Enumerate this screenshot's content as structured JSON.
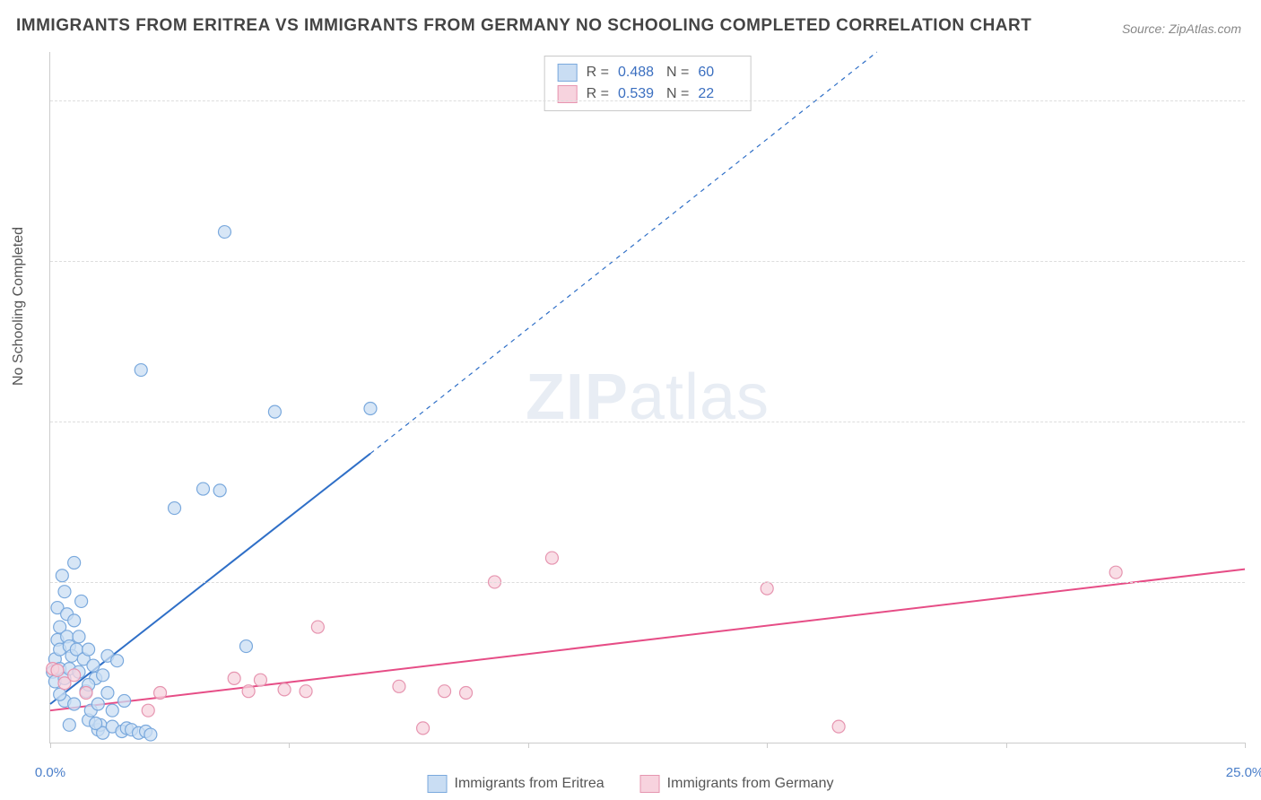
{
  "title": "IMMIGRANTS FROM ERITREA VS IMMIGRANTS FROM GERMANY NO SCHOOLING COMPLETED CORRELATION CHART",
  "source": "Source: ZipAtlas.com",
  "ylabel": "No Schooling Completed",
  "watermark": {
    "bold": "ZIP",
    "light": "atlas"
  },
  "chart": {
    "type": "scatter-correlation",
    "background_color": "#ffffff",
    "grid_color": "#dddddd",
    "axis_color": "#cccccc",
    "tick_label_color": "#4a7ec9",
    "label_fontsize": 16,
    "tick_fontsize": 15,
    "title_fontsize": 19,
    "xlim": [
      0,
      25
    ],
    "ylim": [
      0,
      21.5
    ],
    "yticks": [
      5,
      10,
      15,
      20
    ],
    "ytick_labels": [
      "5.0%",
      "10.0%",
      "15.0%",
      "20.0%"
    ],
    "xticks": [
      0,
      5,
      10,
      15,
      20,
      25
    ],
    "xtick_labels": [
      "0.0%",
      "",
      "",
      "",
      "",
      "25.0%"
    ],
    "marker_radius": 7,
    "marker_stroke_width": 1.2,
    "line_width": 2,
    "dash_pattern": "5,5"
  },
  "series": [
    {
      "name": "Immigrants from Eritrea",
      "legend_label": "Immigrants from Eritrea",
      "fill": "#c9ddf3",
      "stroke": "#7aa9dd",
      "line_color": "#2f6fc7",
      "R": "0.488",
      "N": "60",
      "trend_solid": {
        "x1": 0,
        "y1": 1.2,
        "x2": 6.7,
        "y2": 9.0
      },
      "trend_dash": {
        "x1": 6.7,
        "y1": 9.0,
        "x2": 17.3,
        "y2": 21.5
      },
      "points": [
        [
          0.05,
          2.2
        ],
        [
          0.1,
          2.6
        ],
        [
          0.1,
          1.9
        ],
        [
          0.15,
          3.2
        ],
        [
          0.15,
          4.2
        ],
        [
          0.2,
          3.6
        ],
        [
          0.2,
          2.9
        ],
        [
          0.2,
          2.3
        ],
        [
          0.25,
          5.2
        ],
        [
          0.3,
          4.7
        ],
        [
          0.3,
          2.0
        ],
        [
          0.3,
          1.3
        ],
        [
          0.35,
          3.3
        ],
        [
          0.35,
          4.0
        ],
        [
          0.4,
          3.0
        ],
        [
          0.4,
          2.3
        ],
        [
          0.4,
          0.55
        ],
        [
          0.45,
          2.7
        ],
        [
          0.5,
          3.8
        ],
        [
          0.5,
          5.6
        ],
        [
          0.55,
          2.9
        ],
        [
          0.6,
          2.2
        ],
        [
          0.6,
          3.3
        ],
        [
          0.65,
          4.4
        ],
        [
          0.7,
          2.6
        ],
        [
          0.75,
          1.6
        ],
        [
          0.8,
          2.9
        ],
        [
          0.8,
          0.7
        ],
        [
          0.85,
          1.0
        ],
        [
          0.9,
          2.4
        ],
        [
          0.95,
          2.0
        ],
        [
          1.0,
          0.4
        ],
        [
          1.0,
          1.2
        ],
        [
          1.05,
          0.55
        ],
        [
          1.1,
          2.1
        ],
        [
          1.1,
          0.3
        ],
        [
          1.2,
          2.7
        ],
        [
          1.2,
          1.55
        ],
        [
          1.3,
          1.0
        ],
        [
          1.3,
          0.5
        ],
        [
          1.4,
          2.55
        ],
        [
          1.5,
          0.35
        ],
        [
          1.55,
          1.3
        ],
        [
          1.6,
          0.45
        ],
        [
          1.7,
          0.4
        ],
        [
          1.85,
          0.3
        ],
        [
          2.0,
          0.35
        ],
        [
          2.1,
          0.25
        ],
        [
          1.9,
          11.6
        ],
        [
          2.6,
          7.3
        ],
        [
          3.2,
          7.9
        ],
        [
          3.55,
          7.85
        ],
        [
          3.65,
          15.9
        ],
        [
          4.1,
          3.0
        ],
        [
          4.7,
          10.3
        ],
        [
          6.7,
          10.4
        ],
        [
          0.2,
          1.5
        ],
        [
          0.5,
          1.2
        ],
        [
          0.8,
          1.8
        ],
        [
          0.95,
          0.6
        ]
      ]
    },
    {
      "name": "Immigrants from Germany",
      "legend_label": "Immigrants from Germany",
      "fill": "#f7d3de",
      "stroke": "#e695b0",
      "line_color": "#e64d86",
      "R": "0.539",
      "N": "22",
      "trend_solid": {
        "x1": 0,
        "y1": 1.0,
        "x2": 25,
        "y2": 5.4
      },
      "trend_dash": null,
      "points": [
        [
          0.05,
          2.3
        ],
        [
          0.15,
          2.25
        ],
        [
          0.3,
          1.85
        ],
        [
          0.5,
          2.1
        ],
        [
          2.05,
          1.0
        ],
        [
          2.3,
          1.55
        ],
        [
          3.85,
          2.0
        ],
        [
          4.15,
          1.6
        ],
        [
          4.4,
          1.95
        ],
        [
          4.9,
          1.65
        ],
        [
          5.35,
          1.6
        ],
        [
          5.6,
          3.6
        ],
        [
          7.3,
          1.75
        ],
        [
          7.8,
          0.45
        ],
        [
          8.25,
          1.6
        ],
        [
          8.7,
          1.55
        ],
        [
          9.3,
          5.0
        ],
        [
          10.5,
          5.75
        ],
        [
          15.0,
          4.8
        ],
        [
          16.5,
          0.5
        ],
        [
          22.3,
          5.3
        ],
        [
          0.75,
          1.55
        ]
      ]
    }
  ],
  "stats_box_labels": {
    "R": "R =",
    "N": "N ="
  },
  "bottom_legend": {
    "items": [
      "Immigrants from Eritrea",
      "Immigrants from Germany"
    ]
  }
}
